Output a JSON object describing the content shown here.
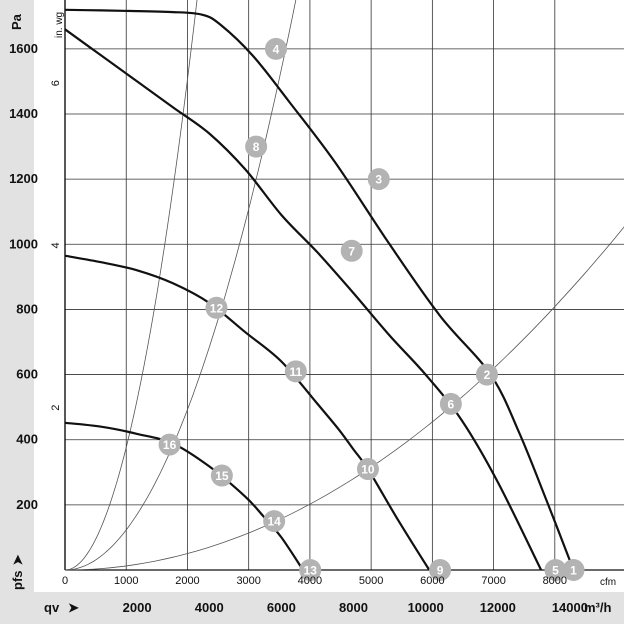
{
  "chart_data": {
    "type": "line",
    "title": "",
    "colors": {
      "band": "#e2e2e2",
      "grid": "#333333",
      "curve": "#111111",
      "guide": "#555555",
      "marker": "#b3b3b3",
      "marker_text": "#ffffff"
    },
    "x_axis_m3h": {
      "label": "qv",
      "unit": "m³/h",
      "range": [
        0,
        15500
      ],
      "ticks": [
        2000,
        4000,
        6000,
        8000,
        10000,
        12000,
        14000
      ]
    },
    "x_axis_cfm": {
      "unit": "cfm",
      "range": [
        0,
        9130
      ],
      "ticks": [
        0,
        1000,
        2000,
        3000,
        4000,
        5000,
        6000,
        7000,
        8000
      ]
    },
    "y_axis_pa": {
      "label": "pfs",
      "unit": "Pa",
      "range": [
        0,
        1750
      ],
      "ticks": [
        200,
        400,
        600,
        800,
        1000,
        1200,
        1400,
        1600
      ]
    },
    "y_axis_inwg": {
      "unit": "in. wg",
      "ticks": [
        2,
        4,
        6
      ]
    },
    "grid": true,
    "fan_curves": [
      {
        "x": [
          0,
          1000,
          2000,
          3000,
          3800,
          4300,
          5200,
          6200,
          7500,
          9000,
          10400,
          11800,
          12600,
          13400,
          14100
        ],
        "y": [
          1720,
          1718,
          1716,
          1713,
          1705,
          1675,
          1580,
          1440,
          1250,
          1000,
          780,
          600,
          420,
          200,
          0
        ]
      },
      {
        "x": [
          0,
          1000,
          2000,
          3000,
          4000,
          5000,
          6000,
          7000,
          8000,
          9000,
          10000,
          11000,
          12000,
          13200
        ],
        "y": [
          1660,
          1580,
          1500,
          1420,
          1340,
          1230,
          1090,
          975,
          850,
          720,
          600,
          460,
          270,
          0
        ]
      },
      {
        "x": [
          0,
          1000,
          2000,
          3000,
          4000,
          5000,
          6000,
          7000,
          7600,
          8000,
          8400,
          9200,
          10100
        ],
        "y": [
          965,
          945,
          920,
          880,
          820,
          730,
          640,
          510,
          430,
          370,
          310,
          160,
          0
        ]
      },
      {
        "x": [
          0,
          1000,
          2000,
          3000,
          4000,
          5000,
          5500,
          6000,
          6600
        ],
        "y": [
          452,
          440,
          418,
          388,
          318,
          225,
          165,
          100,
          0
        ]
      }
    ],
    "system_curves": [
      {
        "points": [
          4,
          8,
          12,
          16
        ],
        "through": [
          3500,
          1600
        ]
      },
      {
        "points": [
          3,
          7,
          11,
          15
        ],
        "through": [
          5300,
          1200
        ]
      },
      {
        "points": [
          2,
          6,
          10,
          14
        ],
        "through": [
          11700,
          600
        ]
      }
    ],
    "operating_points": [
      {
        "label": "1",
        "x": 14100,
        "y": 0
      },
      {
        "label": "2",
        "x": 11700,
        "y": 600
      },
      {
        "label": "3",
        "x": 8700,
        "y": 1200
      },
      {
        "label": "4",
        "x": 5850,
        "y": 1600
      },
      {
        "label": "5",
        "x": 13600,
        "y": 0
      },
      {
        "label": "6",
        "x": 10700,
        "y": 510
      },
      {
        "label": "7",
        "x": 7950,
        "y": 980
      },
      {
        "label": "8",
        "x": 5300,
        "y": 1300
      },
      {
        "label": "9",
        "x": 10400,
        "y": 0
      },
      {
        "label": "10",
        "x": 8400,
        "y": 310
      },
      {
        "label": "11",
        "x": 6400,
        "y": 610
      },
      {
        "label": "12",
        "x": 4200,
        "y": 805
      },
      {
        "label": "13",
        "x": 6800,
        "y": 0
      },
      {
        "label": "14",
        "x": 5800,
        "y": 150
      },
      {
        "label": "15",
        "x": 4350,
        "y": 290
      },
      {
        "label": "16",
        "x": 2900,
        "y": 385
      }
    ]
  }
}
